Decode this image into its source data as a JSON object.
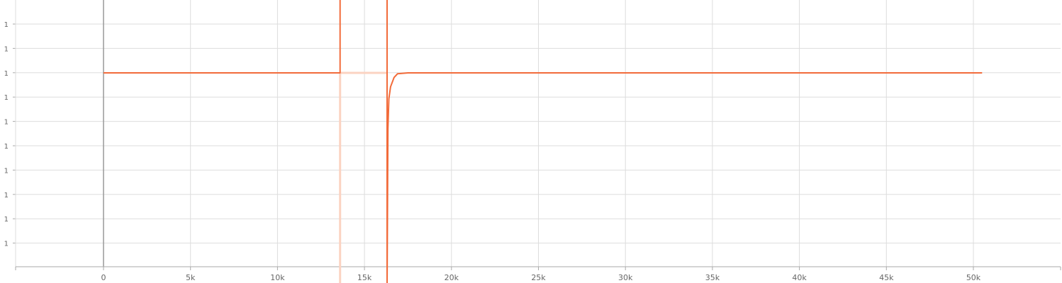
{
  "chart_data": {
    "type": "line",
    "title": "",
    "xlabel": "",
    "ylabel": "",
    "xlim": [
      -5000,
      55000
    ],
    "x_ticks": [
      0,
      5000,
      10000,
      15000,
      20000,
      25000,
      30000,
      35000,
      40000,
      45000,
      50000
    ],
    "x_tick_labels": [
      "0",
      "5k",
      "10k",
      "15k",
      "20k",
      "25k",
      "30k",
      "35k",
      "40k",
      "45k",
      "50k"
    ],
    "y_tick_labels": [
      "1",
      "1",
      "1",
      "1",
      "1",
      "1",
      "1",
      "1",
      "1",
      "1"
    ],
    "grid": true,
    "colors": {
      "series": "#f26b3a",
      "faint_series": "#fbd3c2",
      "grid": "#dddddd",
      "axis": "#aaaaaa",
      "zero_line": "#999999"
    },
    "series": [
      {
        "segments": [
          [
            [
              0,
              1
            ],
            [
              13600,
              1
            ],
            [
              13600,
              1.3
            ]
          ],
          [
            [
              16300,
              1.3
            ],
            [
              16300,
              -1.3
            ],
            [
              16350,
              0.4
            ],
            [
              16400,
              0.72
            ],
            [
              16500,
              0.85
            ],
            [
              16700,
              0.95
            ],
            [
              16900,
              0.99
            ],
            [
              17500,
              1
            ],
            [
              50500,
              1
            ]
          ]
        ]
      }
    ],
    "faint_series": [
      {
        "segments": [
          [
            [
              13600,
              1
            ],
            [
              16300,
              1
            ]
          ],
          [
            [
              13600,
              1
            ],
            [
              13600,
              -1.3
            ]
          ]
        ]
      }
    ]
  }
}
